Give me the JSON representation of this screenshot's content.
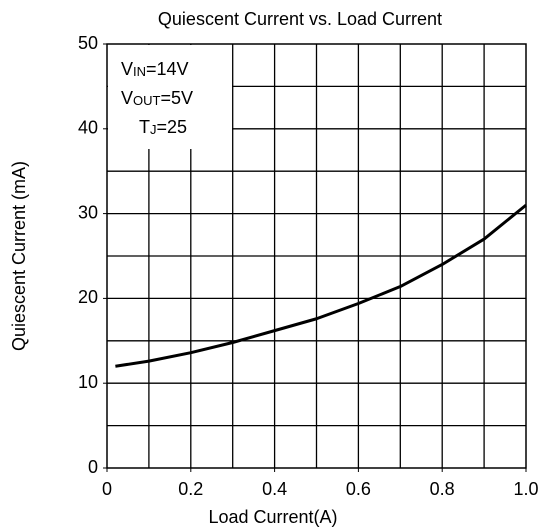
{
  "chart_data": {
    "type": "line",
    "title": "Quiescent Current vs. Load Current",
    "x_label": "Load Current(A)",
    "y_label": "Quiescent Current (mA)",
    "annotations": [
      {
        "symbol": "V",
        "subscript": "IN",
        "text": "=14V"
      },
      {
        "symbol": "V",
        "subscript": "OUT",
        "text": "=5V"
      },
      {
        "symbol": "T",
        "subscript": "J",
        "text": "=25"
      }
    ],
    "x": [
      0.02,
      0.1,
      0.2,
      0.3,
      0.4,
      0.5,
      0.6,
      0.7,
      0.8,
      0.9,
      1.0
    ],
    "series": [
      {
        "name": "Quiescent Current",
        "color": "#000000",
        "values": [
          12,
          12.6,
          13.6,
          14.8,
          16.2,
          17.6,
          19.4,
          21.4,
          24,
          27,
          31
        ]
      }
    ],
    "xlim": [
      0,
      1
    ],
    "ylim": [
      0,
      50
    ],
    "xticks": [
      0,
      0.2,
      0.4,
      0.6,
      0.8,
      {
        "value": 1,
        "label": "1.0"
      }
    ],
    "yticks": [
      0,
      10,
      20,
      30,
      40,
      50
    ],
    "xgrid": [
      0.1,
      0.2,
      0.3,
      0.4,
      0.5,
      0.6,
      0.7,
      0.8,
      0.9
    ],
    "ygrid": [
      5,
      10,
      15,
      20,
      25,
      30,
      35,
      40,
      45
    ],
    "grid": true
  }
}
